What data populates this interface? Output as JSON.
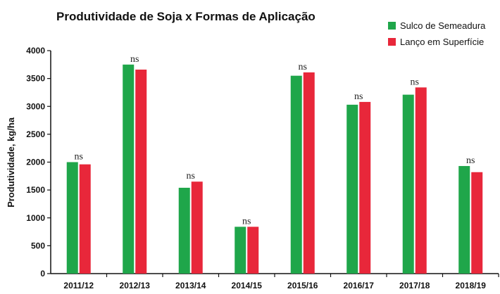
{
  "chart_data": {
    "type": "bar",
    "title": "Produtividade de Soja x Formas de Aplicação",
    "xlabel": "",
    "ylabel": "Produtividade, kg/ha",
    "ylim": [
      0,
      4000
    ],
    "yticks": [
      0,
      500,
      1000,
      1500,
      2000,
      2500,
      3000,
      3500,
      4000
    ],
    "grid": false,
    "legend_position": "top-right",
    "categories": [
      "2011/12",
      "2012/13",
      "2013/14",
      "2014/15",
      "2015/16",
      "2016/17",
      "2017/18",
      "2018/19"
    ],
    "series": [
      {
        "name": "Sulco de Semeadura",
        "color": "#1fa64a",
        "values": [
          2000,
          3750,
          1540,
          840,
          3550,
          3030,
          3210,
          1930
        ]
      },
      {
        "name": "Lanço em Superfície",
        "color": "#e8273a",
        "values": [
          1960,
          3660,
          1650,
          840,
          3610,
          3080,
          3340,
          1820
        ]
      }
    ],
    "annotations": [
      "ns",
      "ns",
      "ns",
      "ns",
      "ns",
      "ns",
      "ns",
      "ns"
    ]
  }
}
